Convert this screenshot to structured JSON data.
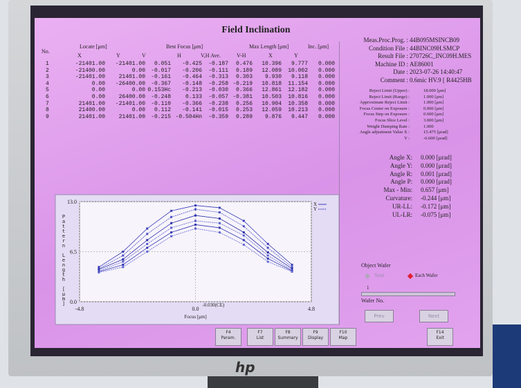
{
  "title": "Field Inclination",
  "table": {
    "group_headers": [
      "No.",
      "Locate [μm]",
      "Best Focus [μm]",
      "Max Length [μm]",
      "Inc. [μm]"
    ],
    "sub_headers": [
      "X",
      "Y",
      "V",
      "H",
      "V,H Ave.",
      "V-H",
      "X",
      "Y"
    ],
    "rows": [
      [
        "1",
        "-21401.00",
        "-21401.00",
        "0.051",
        "-0.425",
        "-0.187",
        "0.476",
        "10.396",
        "9.777",
        "0.000"
      ],
      [
        "2",
        "-21400.00",
        "0.00",
        "-0.017",
        "-0.206",
        "-0.111",
        "0.189",
        "12.089",
        "10.002",
        "0.000"
      ],
      [
        "3",
        "-21401.00",
        "21401.00",
        "-0.161",
        "-0.464",
        "-0.313",
        "0.303",
        "9.930",
        "9.118",
        "0.000"
      ],
      [
        "4",
        "0.00",
        "-26400.00",
        "-0.367",
        "-0.148",
        "-0.258",
        "-0.219",
        "10.818",
        "11.154",
        "0.000"
      ],
      [
        "5",
        "0.00",
        "0.00",
        "0.153Hc",
        "-0.213",
        "-0.030",
        "0.366",
        "12.861",
        "12.182",
        "0.000"
      ],
      [
        "6",
        "0.00",
        "26400.00",
        "-0.248",
        "0.133",
        "-0.057",
        "-0.381",
        "10.503",
        "10.816",
        "0.000"
      ],
      [
        "7",
        "21401.00",
        "-21401.00",
        "-0.110",
        "-0.366",
        "-0.238",
        "0.256",
        "10.904",
        "10.358",
        "0.000"
      ],
      [
        "8",
        "21400.00",
        "0.00",
        "0.112",
        "-0.141",
        "-0.015",
        "0.253",
        "12.059",
        "10.213",
        "0.000"
      ],
      [
        "9",
        "21401.00",
        "21401.00",
        "-0.215",
        "-0.504Hn",
        "-0.359",
        "0.289",
        "9.876",
        "9.447",
        "0.000"
      ]
    ]
  },
  "info": [
    {
      "label": "Meas.Proc.Prog. :",
      "value": "44B095MSINCB09"
    },
    {
      "label": "Condition File :",
      "value": "44BINC09H.SMCP"
    },
    {
      "label": "Result File :",
      "value": "270726C_INC09H.MES"
    },
    {
      "label": "Machine ID :",
      "value": "AE86001"
    },
    {
      "label": "Date :",
      "value": "2023-07-26 14:40:47"
    },
    {
      "label": "Comment :",
      "value": "0.6mic HV.9 [ R4425HB"
    }
  ],
  "limits": [
    {
      "label": "Reject Limit (Upper) :",
      "value": "18.000 [μm]"
    },
    {
      "label": "Reject Limit (Range) :",
      "value": "1.000 [μm]"
    },
    {
      "label": "Approximate Reject Limit :",
      "value": "1.000 [μm]"
    },
    {
      "label": "Focus Center on Exposure :",
      "value": "0.000 [μm]"
    },
    {
      "label": "Focus Step on Exposure :",
      "value": "0.600 [μm]"
    },
    {
      "label": "Focus Slice Level :",
      "value": "3.000 [μm]"
    },
    {
      "label": "Weight Dumping Rate :",
      "value": "1.000"
    },
    {
      "label": "Angle adjustment Value X :",
      "value": "15.475 [μrad]"
    },
    {
      "label": "Y :",
      "value": "-6.600 [μrad]"
    }
  ],
  "angles": [
    {
      "label": "Angle X:",
      "value": "0.000 [μrad]"
    },
    {
      "label": "Angle Y:",
      "value": "0.000 [μrad]"
    },
    {
      "label": "Angle R:",
      "value": "0.001 [μrad]"
    },
    {
      "label": "Angle P:",
      "value": "0.000 [μrad]"
    },
    {
      "label": "Max - Min:",
      "value": "0.657 [μm]"
    },
    {
      "label": "Curvature:",
      "value": "-0.244 [μm]"
    },
    {
      "label": "UR-LL:",
      "value": "-0.172 [μm]"
    },
    {
      "label": "UL-LR:",
      "value": "-0.075 [μm]"
    }
  ],
  "plot": {
    "y_label": "Pattern Length [μm]",
    "x_label": "Focus [μm]",
    "center_label": "-0.030(CE)",
    "xlim": [
      -4.8,
      4.8
    ],
    "ylim": [
      0,
      13
    ],
    "xticks": [
      -4.8,
      {
        "value": 0,
        "label": "0.0"
      },
      4.8
    ],
    "yticks": [
      {
        "value": 0,
        "label": "0.0"
      },
      6.5,
      {
        "value": 13,
        "label": "13.0"
      }
    ],
    "legend": [
      "X",
      "Y"
    ],
    "x": [
      -4,
      -3,
      -2,
      -1,
      0,
      1,
      2,
      3,
      4
    ],
    "series": [
      {
        "color": "#3a3fb8",
        "values": [
          4.5,
          6.5,
          9.5,
          11.8,
          12.5,
          12.2,
          10.5,
          7.5,
          4.8
        ]
      },
      {
        "color": "#4a4fc4",
        "values": [
          4.3,
          6.0,
          8.8,
          11.0,
          12.0,
          11.6,
          9.8,
          7.0,
          4.5
        ]
      },
      {
        "color": "#2b2fa8",
        "values": [
          4.2,
          5.5,
          8.0,
          10.2,
          11.2,
          10.8,
          9.0,
          6.4,
          4.3
        ]
      },
      {
        "color": "#5a5fd0",
        "values": [
          4.0,
          5.2,
          7.5,
          9.6,
          10.5,
          10.2,
          8.6,
          6.0,
          4.1
        ]
      },
      {
        "color": "#3338b0",
        "values": [
          3.9,
          4.8,
          7.0,
          9.0,
          10.0,
          9.6,
          8.0,
          5.6,
          4.0
        ]
      },
      {
        "color": "#6064d4",
        "values": [
          3.8,
          4.5,
          6.5,
          8.5,
          9.5,
          9.0,
          7.4,
          5.2,
          3.9
        ]
      }
    ]
  },
  "wafer": {
    "title": "Object Wafer",
    "options": [
      "Total",
      "Each Wafer"
    ],
    "slider_value": "1",
    "label": "Wafer No.",
    "buttons": [
      "Prev",
      "Next"
    ]
  },
  "buttons": [
    {
      "key": "F4",
      "label": "Param."
    },
    {
      "key": "F7",
      "label": "List"
    },
    {
      "key": "F8",
      "label": "Summary"
    },
    {
      "key": "F9",
      "label": "Display"
    },
    {
      "key": "F10",
      "label": "Map"
    },
    {
      "key": "F14",
      "label": "Exit"
    }
  ],
  "brand": "hp"
}
